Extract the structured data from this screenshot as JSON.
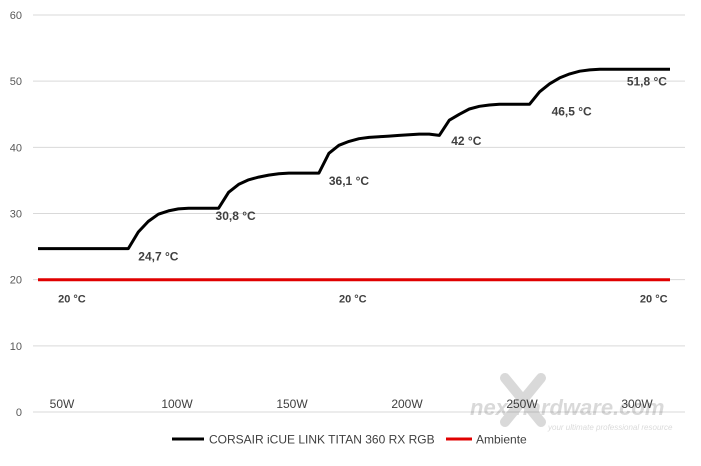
{
  "chart_data": {
    "type": "line",
    "ylim": [
      0,
      60
    ],
    "yticks": [
      "0",
      "10",
      "20",
      "30",
      "40",
      "50",
      "60"
    ],
    "grid": true,
    "legend_position": "bottom",
    "x_categories": [
      "50W",
      "100W",
      "150W",
      "200W",
      "250W",
      "300W"
    ],
    "series": [
      {
        "name": "CORSAIR iCUE LINK TITAN 360 RX RGB",
        "color": "#000000",
        "x": [
          0,
          9,
          10,
          11,
          12,
          13,
          14,
          15,
          16,
          17,
          18,
          19,
          20,
          21,
          22,
          23,
          24,
          25,
          26,
          27,
          28,
          29,
          30,
          31,
          32,
          33,
          34,
          35,
          36,
          37,
          38,
          39,
          40,
          41,
          42,
          43,
          44,
          45,
          46,
          47,
          48,
          49,
          50,
          51,
          52,
          53,
          54,
          55,
          56,
          57,
          58,
          59,
          60,
          61,
          62,
          63
        ],
        "values": [
          24.7,
          24.7,
          27.2,
          28.8,
          29.9,
          30.4,
          30.7,
          30.8,
          30.8,
          30.8,
          30.8,
          33.2,
          34.4,
          35.1,
          35.5,
          35.8,
          36.0,
          36.1,
          36.1,
          36.1,
          36.1,
          39.1,
          40.3,
          40.9,
          41.3,
          41.5,
          41.6,
          41.7,
          41.8,
          41.9,
          42.0,
          42.0,
          41.8,
          44.1,
          45.0,
          45.8,
          46.2,
          46.4,
          46.5,
          46.5,
          46.5,
          46.5,
          48.4,
          49.6,
          50.5,
          51.1,
          51.5,
          51.7,
          51.8,
          51.8,
          51.8,
          51.8,
          51.8,
          51.8,
          51.8,
          51.8
        ]
      },
      {
        "name": "Ambiente",
        "color": "#e00000",
        "x": [
          0,
          63
        ],
        "values": [
          20,
          20
        ]
      }
    ],
    "annotations": [
      {
        "text": "24,7 °C",
        "x": 9,
        "y": 24.7
      },
      {
        "text": "30,8 °C",
        "x": 17,
        "y": 30.8
      },
      {
        "text": "36,1 °C",
        "x": 28,
        "y": 36.1
      },
      {
        "text": "42 °C",
        "x": 40,
        "y": 42
      },
      {
        "text": "46,5 °C",
        "x": 50,
        "y": 46.5
      },
      {
        "text": "51,8 °C",
        "x": 63,
        "y": 51.8
      },
      {
        "text": "20 °C",
        "x": 3,
        "y": 20
      },
      {
        "text": "20 °C",
        "x": 31,
        "y": 20
      },
      {
        "text": "20 °C",
        "x": 61,
        "y": 20
      }
    ]
  },
  "watermark": {
    "brand": "nexthardware.com",
    "tagline": "your ultimate professional resource"
  }
}
